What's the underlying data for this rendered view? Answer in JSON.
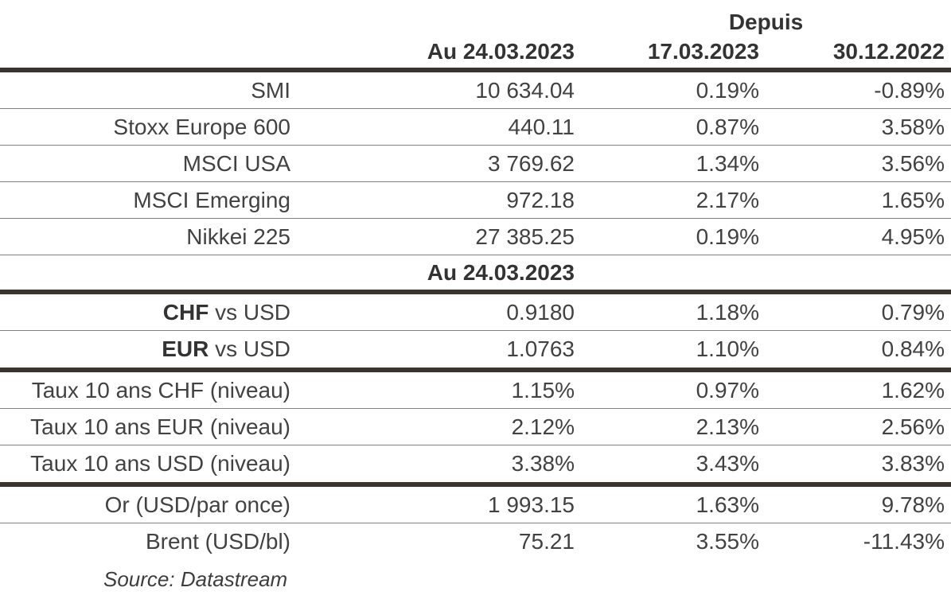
{
  "colors": {
    "background": "#ffffff",
    "body_text": "#424242",
    "header_text": "#333333",
    "thick_border": "#3a342e",
    "thin_border": "#7f7f7f"
  },
  "table": {
    "header": {
      "depuis_label": "Depuis",
      "value_date": "Au 24.03.2023",
      "since_date_1": "17.03.2023",
      "since_date_2": "30.12.2022"
    },
    "rows": [
      {
        "type": "data",
        "label": "SMI",
        "value": "10 634.04",
        "since_17_03": "0.19%",
        "since_30_12": "-0.89%",
        "border": "thin"
      },
      {
        "type": "data",
        "label": "Stoxx Europe 600",
        "value": "440.11",
        "since_17_03": "0.87%",
        "since_30_12": "3.58%",
        "border": "thin"
      },
      {
        "type": "data",
        "label": "MSCI USA",
        "value": "3 769.62",
        "since_17_03": "1.34%",
        "since_30_12": "3.56%",
        "border": "thin"
      },
      {
        "type": "data",
        "label": "MSCI Emerging",
        "value": "972.18",
        "since_17_03": "2.17%",
        "since_30_12": "1.65%",
        "border": "thin"
      },
      {
        "type": "data",
        "label": "Nikkei 225",
        "value": "27 385.25",
        "since_17_03": "0.19%",
        "since_30_12": "4.95%",
        "border": "thin"
      },
      {
        "type": "section",
        "value": "Au 24.03.2023",
        "border": "thick"
      },
      {
        "type": "data",
        "label_bold": "CHF",
        "label_rest": " vs USD",
        "value": "0.9180",
        "since_17_03": "1.18%",
        "since_30_12": "0.79%",
        "border": "thin"
      },
      {
        "type": "data",
        "label_bold": "EUR",
        "label_rest": " vs USD",
        "value": "1.0763",
        "since_17_03": "1.10%",
        "since_30_12": "0.84%",
        "border": "thick"
      },
      {
        "type": "data",
        "label": "Taux 10 ans CHF (niveau)",
        "value": "1.15%",
        "since_17_03": "0.97%",
        "since_30_12": "1.62%",
        "border": "thin"
      },
      {
        "type": "data",
        "label": "Taux 10 ans EUR (niveau)",
        "value": "2.12%",
        "since_17_03": "2.13%",
        "since_30_12": "2.56%",
        "border": "thin"
      },
      {
        "type": "data",
        "label": "Taux 10 ans USD (niveau)",
        "value": "3.38%",
        "since_17_03": "3.43%",
        "since_30_12": "3.83%",
        "border": "thick"
      },
      {
        "type": "data",
        "label": "Or (USD/par once)",
        "value": "1 993.15",
        "since_17_03": "1.63%",
        "since_30_12": "9.78%",
        "border": "thin"
      },
      {
        "type": "data",
        "label": "Brent (USD/bl)",
        "value": "75.21",
        "since_17_03": "3.55%",
        "since_30_12": "-11.43%",
        "border": "none"
      }
    ],
    "source": "Source: Datastream"
  },
  "chart_data": {
    "type": "table",
    "title": "",
    "columns": [
      "",
      "Au 24.03.2023",
      "Depuis 17.03.2023",
      "Depuis 30.12.2022"
    ],
    "rows": [
      [
        "SMI",
        "10 634.04",
        "0.19%",
        "-0.89%"
      ],
      [
        "Stoxx Europe 600",
        "440.11",
        "0.87%",
        "3.58%"
      ],
      [
        "MSCI USA",
        "3 769.62",
        "1.34%",
        "3.56%"
      ],
      [
        "MSCI Emerging",
        "972.18",
        "2.17%",
        "1.65%"
      ],
      [
        "Nikkei 225",
        "27 385.25",
        "0.19%",
        "4.95%"
      ],
      [
        "CHF vs USD",
        "0.9180",
        "1.18%",
        "0.79%"
      ],
      [
        "EUR vs USD",
        "1.0763",
        "1.10%",
        "0.84%"
      ],
      [
        "Taux 10 ans CHF (niveau)",
        "1.15%",
        "0.97%",
        "1.62%"
      ],
      [
        "Taux 10 ans EUR (niveau)",
        "2.12%",
        "2.13%",
        "2.56%"
      ],
      [
        "Taux 10 ans USD (niveau)",
        "3.38%",
        "3.43%",
        "3.83%"
      ],
      [
        "Or (USD/par once)",
        "1 993.15",
        "1.63%",
        "9.78%"
      ],
      [
        "Brent (USD/bl)",
        "75.21",
        "3.55%",
        "-11.43%"
      ]
    ],
    "source": "Source: Datastream"
  }
}
